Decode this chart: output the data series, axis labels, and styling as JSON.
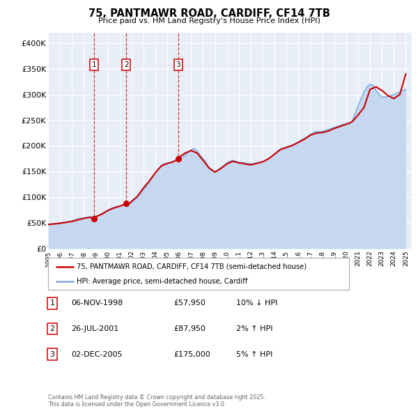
{
  "title": "75, PANTMAWR ROAD, CARDIFF, CF14 7TB",
  "subtitle": "Price paid vs. HM Land Registry's House Price Index (HPI)",
  "legend_property": "75, PANTMAWR ROAD, CARDIFF, CF14 7TB (semi-detached house)",
  "legend_hpi": "HPI: Average price, semi-detached house, Cardiff",
  "background_color": "#ffffff",
  "plot_bg_color": "#e8eef8",
  "grid_color": "#ffffff",
  "property_color": "#cc0000",
  "hpi_fill_color": "#c5d8f0",
  "hpi_line_color": "#7aaadd",
  "vline_color": "#cc0000",
  "transactions": [
    {
      "num": 1,
      "date": "06-NOV-1998",
      "year": 1998.85,
      "price": 57950,
      "hpi_rel": "10% ↓ HPI"
    },
    {
      "num": 2,
      "date": "26-JUL-2001",
      "year": 2001.56,
      "price": 87950,
      "hpi_rel": "2% ↑ HPI"
    },
    {
      "num": 3,
      "date": "02-DEC-2005",
      "year": 2005.92,
      "price": 175000,
      "hpi_rel": "5% ↑ HPI"
    }
  ],
  "copyright_text": "Contains HM Land Registry data © Crown copyright and database right 2025.\nThis data is licensed under the Open Government Licence v3.0.",
  "xmin": 1995,
  "xmax": 2025.5,
  "ymin": 0,
  "ymax": 420000,
  "yticks": [
    0,
    50000,
    100000,
    150000,
    200000,
    250000,
    300000,
    350000,
    400000
  ],
  "ytick_labels": [
    "£0",
    "£50K",
    "£100K",
    "£150K",
    "£200K",
    "£250K",
    "£300K",
    "£350K",
    "£400K"
  ],
  "hpi_data": {
    "years": [
      1995.0,
      1995.25,
      1995.5,
      1995.75,
      1996.0,
      1996.25,
      1996.5,
      1996.75,
      1997.0,
      1997.25,
      1997.5,
      1997.75,
      1998.0,
      1998.25,
      1998.5,
      1998.75,
      1999.0,
      1999.25,
      1999.5,
      1999.75,
      2000.0,
      2000.25,
      2000.5,
      2000.75,
      2001.0,
      2001.25,
      2001.5,
      2001.75,
      2002.0,
      2002.25,
      2002.5,
      2002.75,
      2003.0,
      2003.25,
      2003.5,
      2003.75,
      2004.0,
      2004.25,
      2004.5,
      2004.75,
      2005.0,
      2005.25,
      2005.5,
      2005.75,
      2006.0,
      2006.25,
      2006.5,
      2006.75,
      2007.0,
      2007.25,
      2007.5,
      2007.75,
      2008.0,
      2008.25,
      2008.5,
      2008.75,
      2009.0,
      2009.25,
      2009.5,
      2009.75,
      2010.0,
      2010.25,
      2010.5,
      2010.75,
      2011.0,
      2011.25,
      2011.5,
      2011.75,
      2012.0,
      2012.25,
      2012.5,
      2012.75,
      2013.0,
      2013.25,
      2013.5,
      2013.75,
      2014.0,
      2014.25,
      2014.5,
      2014.75,
      2015.0,
      2015.25,
      2015.5,
      2015.75,
      2016.0,
      2016.25,
      2016.5,
      2016.75,
      2017.0,
      2017.25,
      2017.5,
      2017.75,
      2018.0,
      2018.25,
      2018.5,
      2018.75,
      2019.0,
      2019.25,
      2019.5,
      2019.75,
      2020.0,
      2020.25,
      2020.5,
      2020.75,
      2021.0,
      2021.25,
      2021.5,
      2021.75,
      2022.0,
      2022.25,
      2022.5,
      2022.75,
      2023.0,
      2023.25,
      2023.5,
      2023.75,
      2024.0,
      2024.25,
      2024.5,
      2024.75,
      2025.0
    ],
    "values": [
      48000,
      48500,
      49000,
      49500,
      50000,
      51000,
      52000,
      53000,
      54000,
      56000,
      58000,
      59000,
      60000,
      61000,
      62000,
      62500,
      63000,
      65000,
      68000,
      72000,
      75000,
      78000,
      80000,
      82000,
      83000,
      84000,
      85000,
      87000,
      90000,
      95000,
      100000,
      108000,
      115000,
      122000,
      130000,
      138000,
      148000,
      155000,
      162000,
      165000,
      167000,
      168000,
      170000,
      172000,
      175000,
      178000,
      182000,
      188000,
      192000,
      195000,
      190000,
      182000,
      175000,
      168000,
      158000,
      152000,
      150000,
      153000,
      158000,
      162000,
      167000,
      170000,
      172000,
      170000,
      168000,
      168000,
      167000,
      166000,
      165000,
      166000,
      167000,
      168000,
      170000,
      172000,
      176000,
      180000,
      185000,
      190000,
      194000,
      196000,
      198000,
      200000,
      202000,
      205000,
      208000,
      212000,
      215000,
      218000,
      222000,
      226000,
      228000,
      228000,
      228000,
      230000,
      232000,
      234000,
      236000,
      238000,
      240000,
      242000,
      244000,
      242000,
      248000,
      262000,
      278000,
      292000,
      305000,
      315000,
      320000,
      318000,
      308000,
      300000,
      295000,
      295000,
      296000,
      298000,
      300000,
      302000,
      305000,
      308000,
      310000
    ]
  },
  "property_data": {
    "years": [
      1995.0,
      1995.5,
      1996.0,
      1996.5,
      1997.0,
      1997.5,
      1998.0,
      1998.5,
      1998.85,
      1999.0,
      1999.5,
      2000.0,
      2000.5,
      2001.0,
      2001.56,
      2001.75,
      2002.0,
      2002.5,
      2003.0,
      2003.5,
      2004.0,
      2004.5,
      2005.0,
      2005.5,
      2005.92,
      2006.0,
      2006.5,
      2007.0,
      2007.5,
      2008.0,
      2008.5,
      2009.0,
      2009.5,
      2010.0,
      2010.5,
      2011.0,
      2011.5,
      2012.0,
      2012.5,
      2013.0,
      2013.5,
      2014.0,
      2014.5,
      2015.0,
      2015.5,
      2016.0,
      2016.5,
      2017.0,
      2017.5,
      2018.0,
      2018.5,
      2019.0,
      2019.5,
      2020.0,
      2020.5,
      2021.0,
      2021.5,
      2022.0,
      2022.5,
      2023.0,
      2023.5,
      2024.0,
      2024.5,
      2025.0
    ],
    "values": [
      47000,
      48000,
      49500,
      51000,
      53000,
      56000,
      59000,
      61000,
      57950,
      62000,
      67000,
      74000,
      79000,
      82500,
      87950,
      86000,
      92000,
      102000,
      118000,
      132000,
      148000,
      161000,
      166000,
      169000,
      175000,
      178000,
      186000,
      191000,
      186000,
      172000,
      157000,
      149000,
      156000,
      165000,
      170000,
      167000,
      165000,
      163000,
      166000,
      169000,
      175000,
      184000,
      193000,
      197000,
      201000,
      207000,
      213000,
      221000,
      225000,
      226000,
      229000,
      234000,
      238000,
      242000,
      247000,
      260000,
      275000,
      310000,
      315000,
      308000,
      298000,
      292000,
      300000,
      340000
    ]
  }
}
